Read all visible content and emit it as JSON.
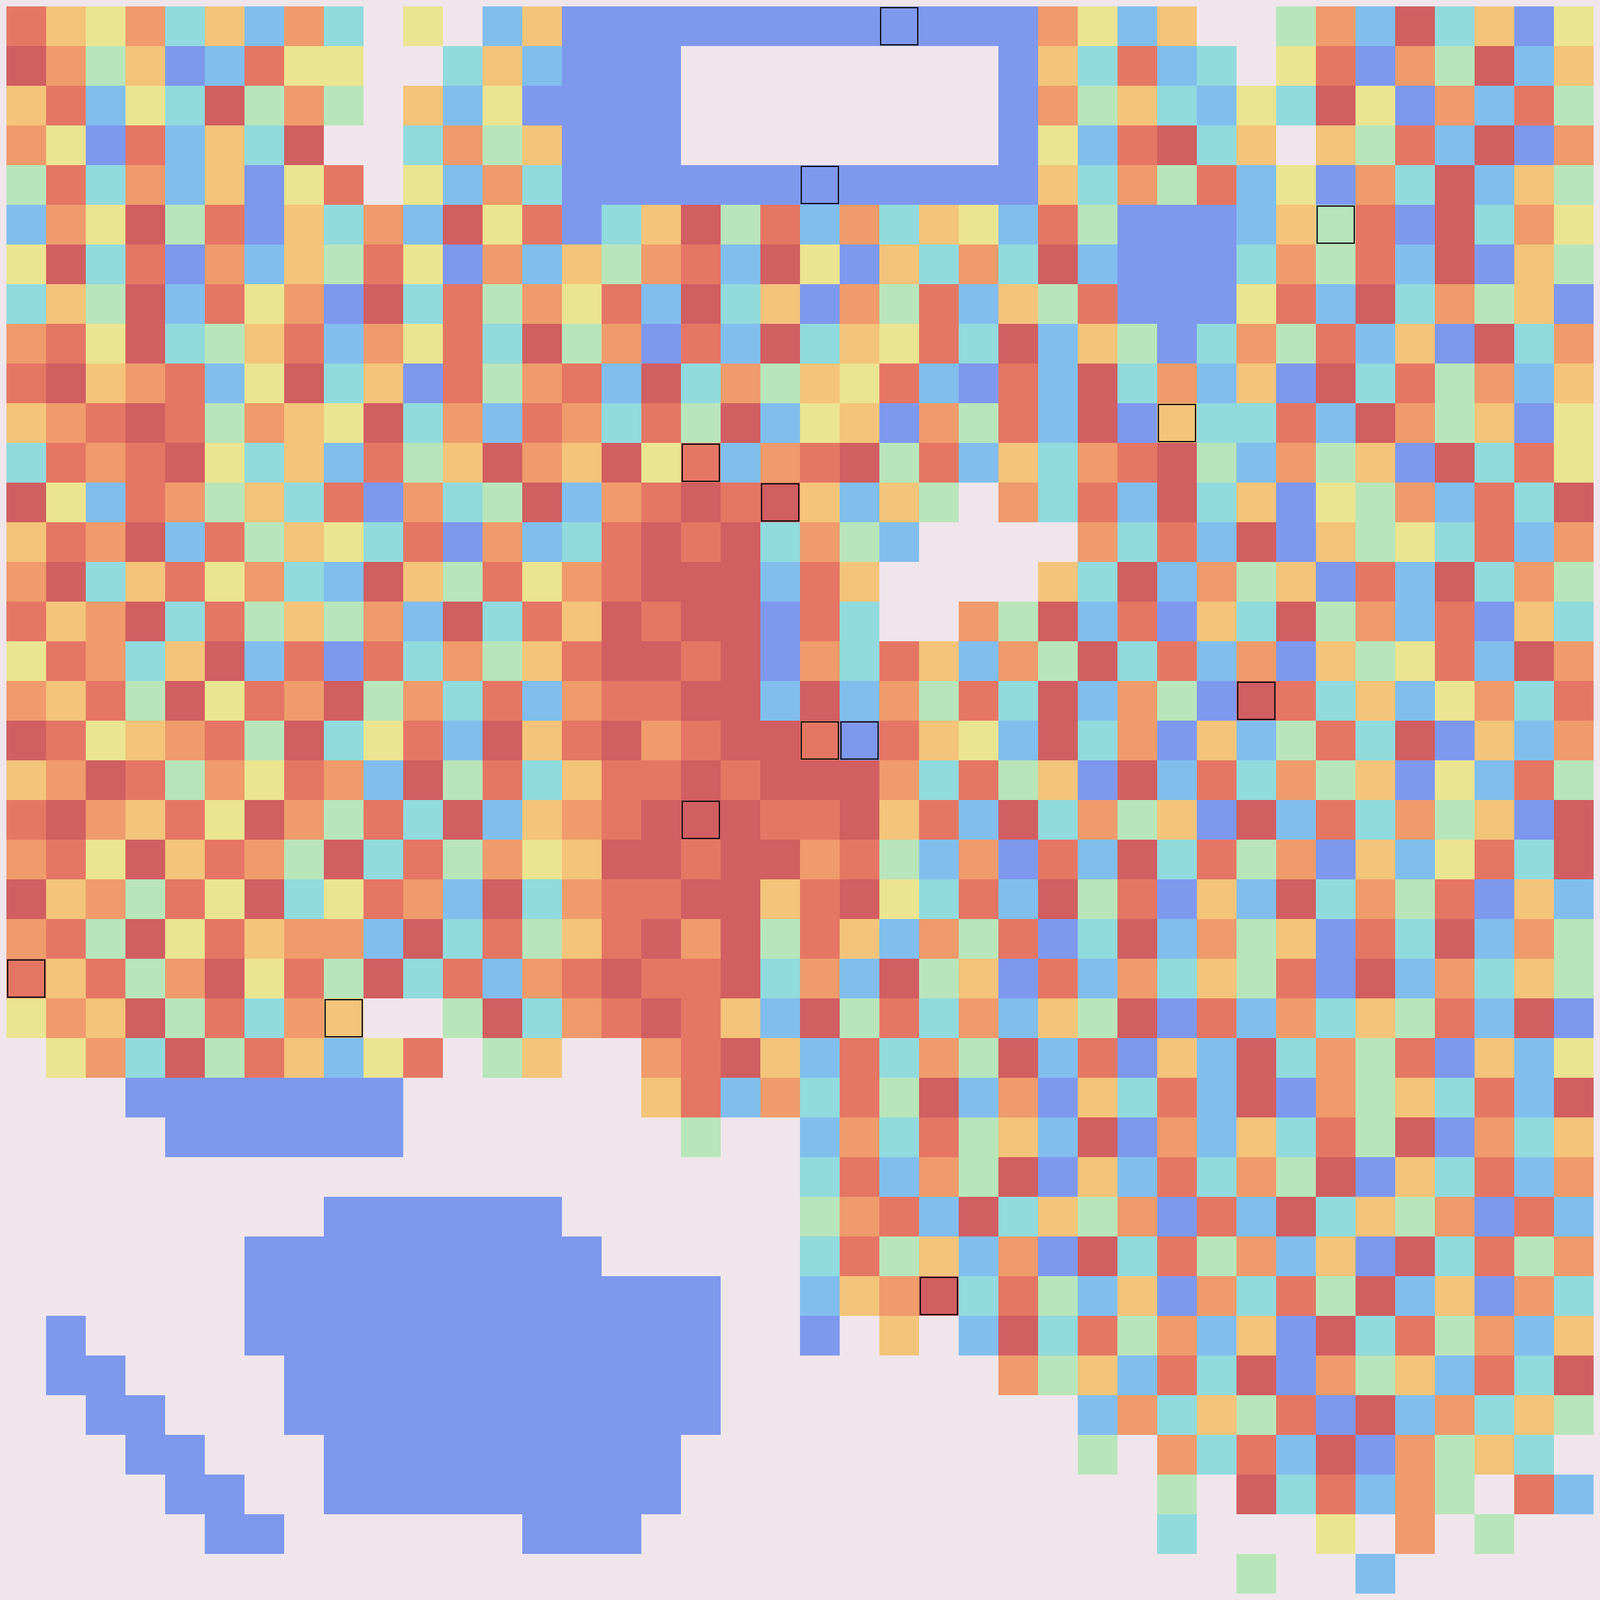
{
  "chart_data": {
    "type": "heatmap",
    "tick_labels": false,
    "zlim": [
      0,
      9
    ],
    "colors": [
      "#5a5ae6",
      "#5f8ff0",
      "#62d0ea",
      "#9fe6b4",
      "#f2e46e",
      "#f3a64e",
      "#e8603e",
      "#c8383a"
    ],
    "highlighted": [
      [
        22,
        0
      ],
      [
        20,
        4
      ],
      [
        33,
        5
      ],
      [
        29,
        10
      ],
      [
        17,
        11
      ],
      [
        19,
        12
      ],
      [
        31,
        17
      ],
      [
        21,
        18
      ],
      [
        20,
        18
      ],
      [
        17,
        20
      ],
      [
        0,
        24
      ],
      [
        8,
        25
      ],
      [
        23,
        32
      ]
    ],
    "cells": [
      [
        8,
        6,
        5,
        7,
        3,
        6,
        2,
        7,
        3,
        null,
        5,
        null,
        2,
        6,
        1,
        1,
        1,
        1,
        1,
        1,
        1,
        1,
        1,
        1,
        1,
        1,
        7,
        5,
        2,
        6,
        null,
        null,
        4,
        7,
        2,
        9,
        3,
        6,
        1,
        5
      ],
      [
        9,
        7,
        4,
        6,
        1,
        2,
        8,
        5,
        5,
        null,
        null,
        3,
        6,
        2,
        1,
        1,
        1,
        null,
        null,
        null,
        null,
        null,
        null,
        null,
        null,
        1,
        6,
        3,
        8,
        2,
        3,
        null,
        5,
        8,
        1,
        7,
        4,
        9,
        2,
        6
      ],
      [
        6,
        8,
        2,
        5,
        3,
        9,
        4,
        7,
        4,
        null,
        6,
        2,
        5,
        1,
        1,
        1,
        1,
        null,
        null,
        null,
        null,
        null,
        null,
        null,
        null,
        1,
        7,
        4,
        6,
        3,
        2,
        5,
        3,
        9,
        5,
        1,
        7,
        2,
        8,
        4
      ],
      [
        7,
        5,
        1,
        8,
        2,
        6,
        3,
        9,
        null,
        null,
        3,
        7,
        4,
        6,
        1,
        1,
        1,
        null,
        null,
        null,
        null,
        null,
        null,
        null,
        null,
        1,
        5,
        2,
        8,
        9,
        3,
        6,
        null,
        6,
        4,
        8,
        2,
        9,
        1,
        7
      ],
      [
        4,
        8,
        3,
        7,
        2,
        6,
        1,
        5,
        8,
        null,
        5,
        2,
        7,
        3,
        1,
        1,
        1,
        1,
        1,
        1,
        1,
        1,
        1,
        1,
        1,
        1,
        6,
        3,
        7,
        4,
        8,
        2,
        5,
        1,
        7,
        3,
        9,
        2,
        6,
        4
      ],
      [
        2,
        7,
        5,
        9,
        4,
        8,
        1,
        6,
        3,
        7,
        2,
        9,
        5,
        8,
        1,
        3,
        6,
        9,
        4,
        8,
        2,
        7,
        3,
        6,
        5,
        2,
        8,
        4,
        1,
        1,
        1,
        2,
        6,
        4,
        8,
        1,
        9,
        3,
        7,
        5
      ],
      [
        5,
        9,
        3,
        8,
        1,
        7,
        2,
        6,
        4,
        8,
        5,
        1,
        7,
        2,
        6,
        4,
        7,
        8,
        2,
        9,
        5,
        1,
        6,
        3,
        7,
        3,
        9,
        2,
        1,
        1,
        1,
        3,
        7,
        4,
        8,
        2,
        9,
        1,
        6,
        4
      ],
      [
        3,
        6,
        4,
        9,
        2,
        8,
        5,
        7,
        1,
        9,
        3,
        8,
        4,
        7,
        5,
        8,
        2,
        9,
        3,
        6,
        1,
        7,
        4,
        8,
        2,
        6,
        4,
        8,
        1,
        1,
        1,
        5,
        8,
        2,
        9,
        3,
        7,
        4,
        6,
        1
      ],
      [
        7,
        8,
        5,
        9,
        3,
        4,
        6,
        8,
        2,
        7,
        5,
        8,
        3,
        9,
        4,
        7,
        1,
        8,
        2,
        9,
        3,
        6,
        5,
        8,
        3,
        9,
        2,
        6,
        4,
        1,
        3,
        7,
        4,
        8,
        2,
        6,
        1,
        9,
        3,
        7
      ],
      [
        8,
        9,
        6,
        7,
        8,
        2,
        5,
        9,
        3,
        6,
        1,
        8,
        4,
        7,
        8,
        2,
        9,
        3,
        7,
        4,
        6,
        5,
        8,
        2,
        1,
        8,
        2,
        9,
        3,
        7,
        2,
        6,
        1,
        9,
        3,
        8,
        4,
        7,
        2,
        6
      ],
      [
        6,
        7,
        8,
        9,
        8,
        4,
        7,
        6,
        5,
        9,
        3,
        7,
        2,
        8,
        7,
        3,
        8,
        4,
        9,
        2,
        5,
        6,
        1,
        7,
        4,
        8,
        2,
        9,
        1,
        6,
        3,
        3,
        8,
        2,
        9,
        7,
        4,
        6,
        1,
        5
      ],
      [
        3,
        8,
        7,
        8,
        9,
        5,
        3,
        6,
        2,
        8,
        4,
        6,
        9,
        7,
        6,
        9,
        5,
        8,
        2,
        7,
        8,
        9,
        4,
        8,
        2,
        6,
        3,
        7,
        8,
        9,
        4,
        2,
        7,
        4,
        6,
        1,
        9,
        3,
        8,
        5
      ],
      [
        9,
        5,
        2,
        8,
        7,
        4,
        6,
        3,
        8,
        1,
        7,
        3,
        4,
        9,
        2,
        7,
        8,
        9,
        8,
        9,
        6,
        2,
        6,
        4,
        null,
        7,
        3,
        8,
        2,
        9,
        3,
        6,
        1,
        5,
        4,
        7,
        2,
        8,
        3,
        9
      ],
      [
        6,
        8,
        7,
        9,
        2,
        8,
        4,
        6,
        5,
        3,
        8,
        1,
        7,
        2,
        3,
        8,
        9,
        8,
        9,
        3,
        7,
        4,
        2,
        null,
        null,
        null,
        null,
        7,
        3,
        8,
        2,
        9,
        1,
        6,
        4,
        5,
        3,
        8,
        2,
        7
      ],
      [
        7,
        9,
        3,
        6,
        8,
        5,
        7,
        3,
        2,
        9,
        6,
        4,
        8,
        5,
        7,
        8,
        9,
        9,
        9,
        2,
        8,
        6,
        null,
        null,
        null,
        null,
        6,
        3,
        9,
        2,
        7,
        4,
        6,
        1,
        8,
        2,
        9,
        3,
        7,
        4
      ],
      [
        8,
        6,
        7,
        9,
        3,
        8,
        4,
        6,
        4,
        7,
        2,
        9,
        3,
        8,
        6,
        9,
        8,
        9,
        9,
        1,
        8,
        3,
        null,
        null,
        7,
        4,
        9,
        2,
        8,
        1,
        6,
        3,
        9,
        4,
        7,
        2,
        8,
        1,
        6,
        3
      ],
      [
        5,
        8,
        7,
        3,
        6,
        9,
        2,
        8,
        1,
        8,
        3,
        7,
        4,
        6,
        8,
        9,
        9,
        8,
        9,
        1,
        7,
        3,
        8,
        6,
        2,
        7,
        4,
        9,
        3,
        8,
        2,
        7,
        1,
        6,
        4,
        5,
        8,
        2,
        9,
        7
      ],
      [
        7,
        6,
        8,
        4,
        9,
        5,
        8,
        7,
        9,
        4,
        7,
        3,
        8,
        2,
        7,
        8,
        8,
        9,
        9,
        2,
        9,
        2,
        7,
        4,
        8,
        3,
        9,
        2,
        7,
        4,
        1,
        9,
        8,
        3,
        6,
        2,
        5,
        7,
        3,
        8
      ],
      [
        9,
        8,
        5,
        6,
        7,
        8,
        4,
        9,
        3,
        5,
        8,
        2,
        9,
        6,
        8,
        9,
        7,
        8,
        9,
        9,
        8,
        1,
        8,
        6,
        5,
        2,
        9,
        3,
        7,
        1,
        6,
        2,
        4,
        8,
        3,
        9,
        1,
        6,
        2,
        7
      ],
      [
        6,
        7,
        9,
        8,
        4,
        7,
        5,
        8,
        7,
        2,
        9,
        4,
        8,
        3,
        6,
        8,
        8,
        9,
        8,
        9,
        9,
        9,
        7,
        3,
        8,
        4,
        6,
        1,
        9,
        2,
        8,
        3,
        7,
        4,
        6,
        1,
        5,
        2,
        8,
        4
      ],
      [
        8,
        9,
        7,
        6,
        8,
        5,
        9,
        7,
        4,
        8,
        3,
        9,
        2,
        6,
        7,
        8,
        9,
        9,
        9,
        8,
        8,
        9,
        6,
        8,
        2,
        9,
        3,
        7,
        4,
        6,
        1,
        9,
        2,
        8,
        3,
        7,
        4,
        6,
        1,
        9
      ],
      [
        7,
        8,
        5,
        9,
        6,
        8,
        7,
        4,
        9,
        3,
        8,
        4,
        7,
        5,
        6,
        9,
        9,
        8,
        9,
        9,
        7,
        8,
        4,
        2,
        7,
        1,
        8,
        2,
        9,
        3,
        8,
        4,
        7,
        1,
        6,
        2,
        5,
        8,
        3,
        9
      ],
      [
        9,
        6,
        7,
        4,
        8,
        5,
        9,
        3,
        5,
        8,
        7,
        2,
        9,
        3,
        7,
        8,
        8,
        9,
        9,
        6,
        8,
        9,
        5,
        3,
        8,
        2,
        9,
        4,
        8,
        1,
        6,
        2,
        9,
        3,
        7,
        4,
        8,
        1,
        6,
        2
      ],
      [
        7,
        8,
        4,
        9,
        5,
        8,
        6,
        7,
        7,
        2,
        9,
        3,
        8,
        4,
        6,
        8,
        9,
        7,
        9,
        4,
        8,
        6,
        2,
        7,
        4,
        8,
        1,
        3,
        9,
        2,
        7,
        4,
        6,
        1,
        8,
        3,
        9,
        2,
        7,
        4
      ],
      [
        8,
        6,
        8,
        4,
        7,
        9,
        5,
        8,
        4,
        9,
        3,
        8,
        2,
        7,
        8,
        9,
        8,
        8,
        9,
        3,
        7,
        2,
        9,
        4,
        6,
        1,
        8,
        2,
        7,
        3,
        6,
        4,
        8,
        1,
        9,
        2,
        7,
        3,
        6,
        4
      ],
      [
        5,
        7,
        6,
        9,
        4,
        8,
        3,
        7,
        6,
        null,
        null,
        4,
        9,
        3,
        7,
        8,
        9,
        8,
        6,
        2,
        9,
        4,
        8,
        3,
        7,
        2,
        6,
        4,
        9,
        1,
        8,
        2,
        7,
        3,
        6,
        4,
        8,
        2,
        9,
        1
      ],
      [
        null,
        5,
        7,
        3,
        9,
        4,
        8,
        6,
        2,
        5,
        8,
        null,
        4,
        6,
        null,
        null,
        7,
        8,
        9,
        6,
        2,
        8,
        3,
        7,
        4,
        9,
        2,
        8,
        1,
        6,
        2,
        9,
        3,
        7,
        4,
        8,
        1,
        6,
        2,
        5
      ],
      [
        null,
        null,
        null,
        1,
        1,
        1,
        1,
        1,
        1,
        1,
        null,
        null,
        null,
        null,
        null,
        null,
        6,
        8,
        2,
        7,
        3,
        8,
        4,
        9,
        2,
        7,
        1,
        6,
        3,
        8,
        2,
        9,
        1,
        7,
        4,
        6,
        3,
        8,
        2,
        9
      ],
      [
        null,
        null,
        null,
        null,
        1,
        1,
        1,
        1,
        1,
        1,
        null,
        null,
        null,
        null,
        null,
        null,
        null,
        4,
        null,
        null,
        2,
        7,
        3,
        8,
        4,
        6,
        2,
        9,
        1,
        7,
        2,
        6,
        3,
        8,
        4,
        9,
        1,
        7,
        3,
        6
      ],
      [
        null,
        null,
        null,
        null,
        null,
        null,
        null,
        null,
        null,
        null,
        null,
        null,
        null,
        null,
        null,
        null,
        null,
        null,
        null,
        null,
        3,
        8,
        2,
        7,
        4,
        9,
        1,
        6,
        2,
        8,
        3,
        7,
        4,
        9,
        1,
        6,
        3,
        8,
        2,
        7
      ],
      [
        null,
        null,
        null,
        null,
        null,
        null,
        null,
        null,
        1,
        1,
        1,
        1,
        1,
        1,
        null,
        null,
        null,
        null,
        null,
        null,
        4,
        7,
        8,
        2,
        9,
        3,
        6,
        4,
        7,
        1,
        8,
        2,
        9,
        3,
        6,
        4,
        7,
        1,
        8,
        2
      ],
      [
        null,
        null,
        null,
        null,
        null,
        null,
        1,
        1,
        1,
        1,
        1,
        1,
        1,
        1,
        1,
        null,
        null,
        null,
        null,
        null,
        3,
        8,
        4,
        6,
        2,
        7,
        1,
        9,
        3,
        8,
        4,
        7,
        2,
        6,
        1,
        9,
        3,
        8,
        4,
        7
      ],
      [
        null,
        null,
        null,
        null,
        null,
        null,
        1,
        1,
        1,
        1,
        1,
        1,
        1,
        1,
        1,
        1,
        1,
        1,
        null,
        null,
        2,
        6,
        7,
        9,
        3,
        8,
        4,
        2,
        6,
        1,
        7,
        3,
        8,
        4,
        9,
        2,
        6,
        1,
        7,
        3
      ],
      [
        null,
        1,
        null,
        null,
        null,
        null,
        1,
        1,
        1,
        1,
        1,
        1,
        1,
        1,
        1,
        1,
        1,
        1,
        null,
        null,
        1,
        null,
        6,
        null,
        2,
        9,
        3,
        8,
        4,
        7,
        2,
        6,
        1,
        9,
        3,
        8,
        4,
        7,
        2,
        6
      ],
      [
        null,
        1,
        1,
        null,
        null,
        null,
        null,
        1,
        1,
        1,
        1,
        1,
        1,
        1,
        1,
        1,
        1,
        1,
        null,
        null,
        null,
        null,
        null,
        null,
        null,
        7,
        4,
        6,
        2,
        8,
        3,
        9,
        1,
        7,
        4,
        6,
        2,
        8,
        3,
        9
      ],
      [
        null,
        null,
        1,
        1,
        null,
        null,
        null,
        1,
        1,
        1,
        1,
        1,
        1,
        1,
        1,
        1,
        1,
        1,
        null,
        null,
        null,
        null,
        null,
        null,
        null,
        null,
        null,
        2,
        7,
        3,
        6,
        4,
        8,
        1,
        9,
        2,
        7,
        3,
        6,
        4
      ],
      [
        null,
        null,
        null,
        1,
        1,
        null,
        null,
        null,
        1,
        1,
        1,
        1,
        1,
        1,
        1,
        1,
        1,
        null,
        null,
        null,
        null,
        null,
        null,
        null,
        null,
        null,
        null,
        4,
        null,
        7,
        3,
        8,
        2,
        9,
        1,
        7,
        4,
        6,
        3,
        null
      ],
      [
        null,
        null,
        null,
        null,
        1,
        1,
        null,
        null,
        1,
        1,
        1,
        1,
        1,
        1,
        1,
        1,
        1,
        null,
        null,
        null,
        null,
        null,
        null,
        null,
        null,
        null,
        null,
        null,
        null,
        4,
        null,
        9,
        3,
        8,
        2,
        7,
        4,
        null,
        8,
        2
      ],
      [
        null,
        null,
        null,
        null,
        null,
        1,
        1,
        null,
        null,
        null,
        null,
        null,
        null,
        1,
        1,
        1,
        null,
        null,
        null,
        null,
        null,
        null,
        null,
        null,
        null,
        null,
        null,
        null,
        null,
        3,
        null,
        null,
        null,
        5,
        null,
        7,
        null,
        4,
        null,
        null
      ],
      [
        null,
        null,
        null,
        null,
        null,
        null,
        null,
        null,
        null,
        null,
        null,
        null,
        null,
        null,
        null,
        null,
        null,
        null,
        null,
        null,
        null,
        null,
        null,
        null,
        null,
        null,
        null,
        null,
        null,
        null,
        null,
        4,
        null,
        null,
        2,
        null,
        null,
        null,
        null,
        null
      ]
    ]
  }
}
